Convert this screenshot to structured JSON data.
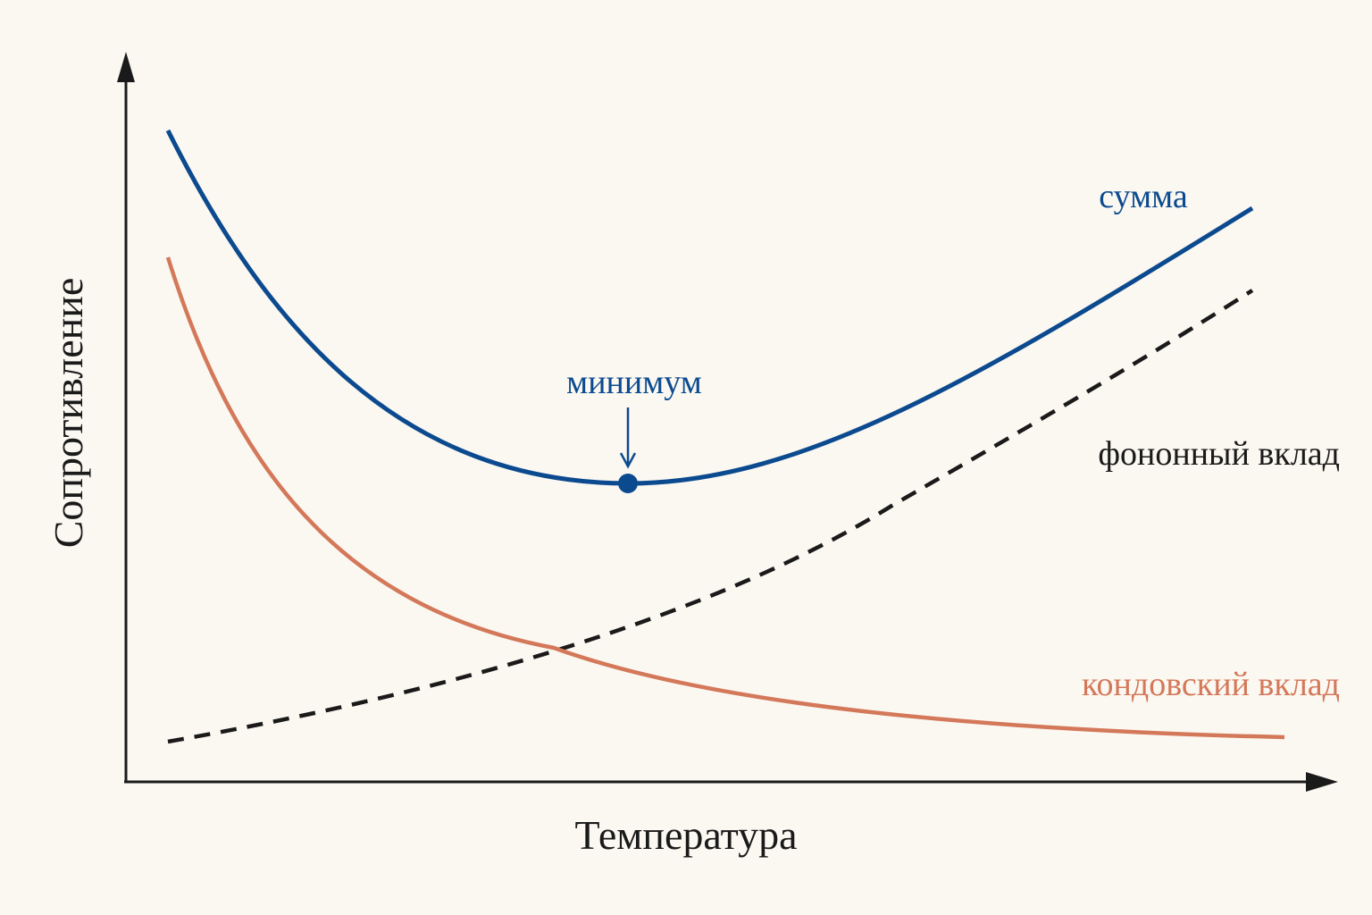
{
  "axes": {
    "y_label": "Сопротивление",
    "x_label": "Температура"
  },
  "curves": {
    "sum": {
      "label": "сумма"
    },
    "phonon": {
      "label": "фононный вклад"
    },
    "kondo": {
      "label": "кондовский вклад"
    }
  },
  "annotations": {
    "minimum": "минимум"
  }
}
